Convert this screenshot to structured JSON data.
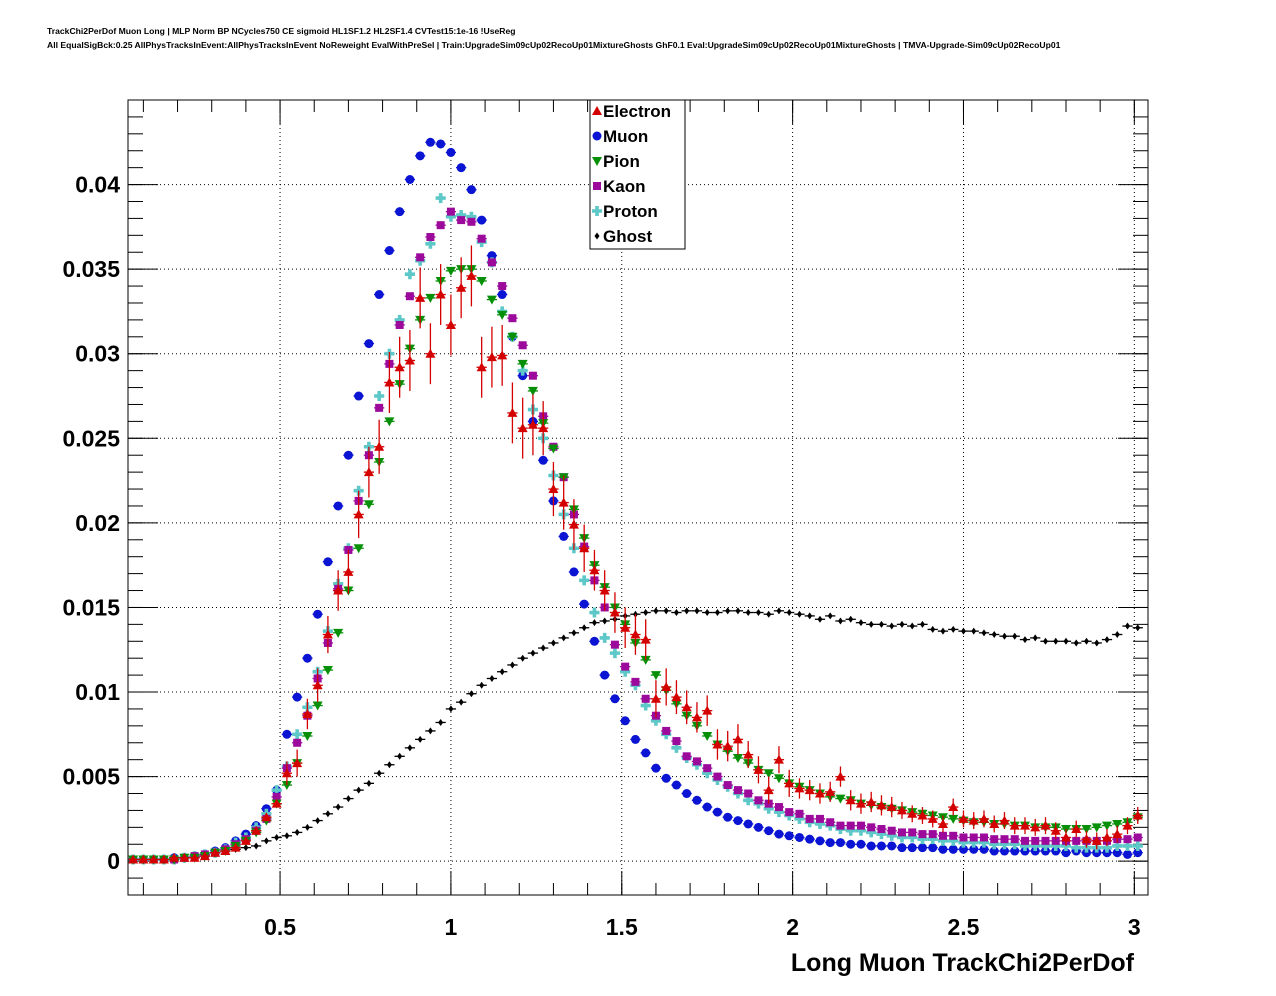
{
  "header": {
    "line1": "TrackChi2PerDof Muon Long | MLP Norm BP NCycles750 CE sigmoid HL1SF1.2 HL2SF1.4 CVTest15:1e-16 !UseReg",
    "line2": "All EqualSigBck:0.25 AllPhysTracksInEvent:AllPhysTracksInEvent NoReweight EvalWithPreSel | Train:UpgradeSim09cUp02RecoUp01MixtureGhosts GhF0.1 Eval:UpgradeSim09cUp02RecoUp01MixtureGhosts | TMVA-Upgrade-Sim09cUp02RecoUp01"
  },
  "chart_data": {
    "type": "scatter",
    "title": "",
    "xlabel": "Long Muon TrackChi2PerDof",
    "ylabel": "",
    "xlim": [
      0.055,
      3.04
    ],
    "ylim": [
      -0.002,
      0.045
    ],
    "grid": true,
    "legend_position": "top-center",
    "xticks": [
      {
        "value": 0.5,
        "label": "0.5"
      },
      {
        "value": 1,
        "label": "1"
      },
      {
        "value": 1.5,
        "label": "1.5"
      },
      {
        "value": 2,
        "label": "2"
      },
      {
        "value": 2.5,
        "label": "2.5"
      },
      {
        "value": 3,
        "label": "3"
      }
    ],
    "yticks": [
      {
        "value": 0,
        "label": "0"
      },
      {
        "value": 0.005,
        "label": "0.005"
      },
      {
        "value": 0.01,
        "label": "0.01"
      },
      {
        "value": 0.015,
        "label": "0.015"
      },
      {
        "value": 0.02,
        "label": "0.02"
      },
      {
        "value": 0.025,
        "label": "0.025"
      },
      {
        "value": 0.03,
        "label": "0.03"
      },
      {
        "value": 0.035,
        "label": "0.035"
      },
      {
        "value": 0.04,
        "label": "0.04"
      }
    ],
    "x_start": 0.07,
    "bin_width": 0.03,
    "series": [
      {
        "name": "Electron",
        "marker": "triangle-up",
        "color": "#d40000",
        "values": [
          0.0001,
          0.0001,
          0.0001,
          0.0001,
          0.0002,
          0.0002,
          0.0002,
          0.0003,
          0.0005,
          0.0006,
          0.0008,
          0.0012,
          0.0018,
          0.0026,
          0.0034,
          0.0052,
          0.0058,
          0.0087,
          0.0104,
          0.0134,
          0.016,
          0.0171,
          0.0205,
          0.023,
          0.0245,
          0.0283,
          0.0292,
          0.0296,
          0.0333,
          0.03,
          0.0335,
          0.0317,
          0.0339,
          0.0346,
          0.0292,
          0.0298,
          0.0299,
          0.0265,
          0.0256,
          0.0258,
          0.0256,
          0.022,
          0.0212,
          0.0199,
          0.0185,
          0.0172,
          0.016,
          0.0147,
          0.0138,
          0.0134,
          0.0131,
          0.0096,
          0.0103,
          0.0097,
          0.0091,
          0.0085,
          0.0089,
          0.0069,
          0.0068,
          0.0072,
          0.0063,
          0.0054,
          0.0042,
          0.006,
          0.0046,
          0.0043,
          0.0042,
          0.004,
          0.0041,
          0.005,
          0.0036,
          0.0034,
          0.0035,
          0.0033,
          0.0032,
          0.003,
          0.0028,
          0.0027,
          0.0025,
          0.0022,
          0.0032,
          0.0025,
          0.0024,
          0.0025,
          0.0022,
          0.0024,
          0.0021,
          0.0021,
          0.002,
          0.0021,
          0.0018,
          0.0014,
          0.0019,
          0.0013,
          0.0012,
          0.0014,
          0.0016,
          0.0021,
          0.0027
        ],
        "errors": [
          0.0001,
          0.0001,
          0.0001,
          0.0001,
          0.0001,
          0.0001,
          0.0001,
          0.0001,
          0.0001,
          0.0001,
          0.0002,
          0.0002,
          0.0002,
          0.0002,
          0.0002,
          0.0007,
          0.0008,
          0.0009,
          0.001,
          0.0011,
          0.0012,
          0.0013,
          0.0014,
          0.0015,
          0.0016,
          0.0018,
          0.0018,
          0.0018,
          0.0018,
          0.0018,
          0.0018,
          0.0018,
          0.0018,
          0.0018,
          0.0018,
          0.0018,
          0.0018,
          0.0018,
          0.0018,
          0.0018,
          0.0016,
          0.0016,
          0.0016,
          0.0015,
          0.0014,
          0.0012,
          0.0012,
          0.0012,
          0.0012,
          0.0012,
          0.0012,
          0.0011,
          0.0011,
          0.001,
          0.001,
          0.0009,
          0.0009,
          0.0009,
          0.0009,
          0.0009,
          0.0008,
          0.0008,
          0.0008,
          0.0008,
          0.0008,
          0.0006,
          0.0006,
          0.0006,
          0.0006,
          0.0006,
          0.0006,
          0.0006,
          0.0006,
          0.0006,
          0.0006,
          0.0005,
          0.0005,
          0.0005,
          0.0005,
          0.0005,
          0.0005,
          0.0005,
          0.0005,
          0.0005,
          0.0005,
          0.0005,
          0.0005,
          0.0005,
          0.0005,
          0.0005,
          0.0005,
          0.0005,
          0.0005,
          0.0005,
          0.0005,
          0.0005,
          0.0005,
          0.0005,
          0.0005
        ]
      },
      {
        "name": "Muon",
        "marker": "circle",
        "color": "#0a14d2",
        "values": [
          0.0001,
          0.0001,
          0.0001,
          0.0001,
          0.0002,
          0.0002,
          0.0003,
          0.0004,
          0.0006,
          0.0008,
          0.0012,
          0.0016,
          0.0021,
          0.0031,
          0.0042,
          0.0075,
          0.0097,
          0.012,
          0.0146,
          0.0177,
          0.021,
          0.024,
          0.0275,
          0.0306,
          0.0335,
          0.0361,
          0.0384,
          0.0403,
          0.0417,
          0.0425,
          0.0424,
          0.0419,
          0.041,
          0.0397,
          0.0379,
          0.0358,
          0.0335,
          0.031,
          0.0287,
          0.026,
          0.0237,
          0.0213,
          0.0192,
          0.0171,
          0.0152,
          0.013,
          0.011,
          0.0096,
          0.0083,
          0.0072,
          0.0064,
          0.0055,
          0.0049,
          0.0045,
          0.004,
          0.0036,
          0.0032,
          0.0029,
          0.0026,
          0.0024,
          0.0022,
          0.002,
          0.0018,
          0.0016,
          0.0015,
          0.0014,
          0.0013,
          0.0012,
          0.0011,
          0.0011,
          0.001,
          0.001,
          0.0009,
          0.0009,
          0.0009,
          0.0008,
          0.0008,
          0.0008,
          0.0008,
          0.0007,
          0.0007,
          0.0007,
          0.0007,
          0.0007,
          0.0006,
          0.0006,
          0.0006,
          0.0006,
          0.0006,
          0.0006,
          0.0006,
          0.0005,
          0.0006,
          0.0005,
          0.0005,
          0.0005,
          0.0005,
          0.0004,
          0.0005
        ]
      },
      {
        "name": "Pion",
        "marker": "triangle-down",
        "color": "#079007",
        "values": [
          0.0001,
          0.0001,
          0.0001,
          0.0001,
          0.0001,
          0.0002,
          0.0002,
          0.0003,
          0.0005,
          0.0006,
          0.0009,
          0.0012,
          0.0017,
          0.0024,
          0.0034,
          0.0045,
          0.0058,
          0.0074,
          0.0092,
          0.0113,
          0.0135,
          0.016,
          0.0185,
          0.0211,
          0.0236,
          0.026,
          0.0282,
          0.0303,
          0.032,
          0.0333,
          0.0343,
          0.0349,
          0.035,
          0.035,
          0.0343,
          0.0332,
          0.0323,
          0.031,
          0.0294,
          0.0278,
          0.0259,
          0.0244,
          0.0227,
          0.0208,
          0.0191,
          0.0175,
          0.0162,
          0.015,
          0.014,
          0.0129,
          0.0119,
          0.011,
          0.0101,
          0.0093,
          0.0086,
          0.008,
          0.0074,
          0.0069,
          0.0065,
          0.0061,
          0.0058,
          0.0054,
          0.0052,
          0.0049,
          0.0046,
          0.0044,
          0.0042,
          0.004,
          0.0038,
          0.0037,
          0.0036,
          0.0034,
          0.0033,
          0.0032,
          0.0031,
          0.003,
          0.0029,
          0.0028,
          0.0027,
          0.0026,
          0.0025,
          0.0024,
          0.0023,
          0.0023,
          0.0022,
          0.0022,
          0.0021,
          0.0021,
          0.002,
          0.002,
          0.002,
          0.0019,
          0.0019,
          0.0019,
          0.002,
          0.0021,
          0.0022,
          0.0023,
          0.0026
        ]
      },
      {
        "name": "Kaon",
        "marker": "square",
        "color": "#9c0a9c",
        "values": [
          0.0001,
          0.0001,
          0.0001,
          0.0001,
          0.0001,
          0.0002,
          0.0003,
          0.0004,
          0.0005,
          0.0007,
          0.001,
          0.0013,
          0.0018,
          0.0025,
          0.0038,
          0.0055,
          0.007,
          0.0086,
          0.0108,
          0.0129,
          0.0161,
          0.0184,
          0.0213,
          0.024,
          0.0268,
          0.0294,
          0.0317,
          0.0334,
          0.0357,
          0.0369,
          0.0376,
          0.0384,
          0.0379,
          0.0378,
          0.0368,
          0.0354,
          0.034,
          0.0321,
          0.0305,
          0.0287,
          0.0263,
          0.0245,
          0.0227,
          0.0205,
          0.0186,
          0.0166,
          0.015,
          0.0128,
          0.0115,
          0.0106,
          0.0096,
          0.0086,
          0.0077,
          0.0071,
          0.0062,
          0.0059,
          0.0055,
          0.005,
          0.0045,
          0.0042,
          0.004,
          0.0036,
          0.0034,
          0.0032,
          0.0029,
          0.0028,
          0.0025,
          0.0025,
          0.0023,
          0.0021,
          0.0021,
          0.0021,
          0.002,
          0.0019,
          0.0018,
          0.0017,
          0.0017,
          0.0016,
          0.0016,
          0.0015,
          0.0015,
          0.0014,
          0.0014,
          0.0014,
          0.0013,
          0.0013,
          0.0013,
          0.0012,
          0.0012,
          0.0012,
          0.0012,
          0.0012,
          0.0012,
          0.0012,
          0.0012,
          0.0012,
          0.0013,
          0.0013,
          0.0014
        ]
      },
      {
        "name": "Proton",
        "marker": "cross",
        "color": "#5ec8c8",
        "values": [
          0.0001,
          0.0001,
          0.0001,
          0.0001,
          0.0001,
          0.0002,
          0.0003,
          0.0004,
          0.0005,
          0.0007,
          0.0011,
          0.0014,
          0.002,
          0.0028,
          0.0042,
          0.0056,
          0.0075,
          0.0091,
          0.0112,
          0.0136,
          0.0164,
          0.0185,
          0.0219,
          0.0245,
          0.0275,
          0.03,
          0.032,
          0.0347,
          0.0355,
          0.0365,
          0.0392,
          0.0381,
          0.0382,
          0.0381,
          0.0366,
          0.0354,
          0.0325,
          0.031,
          0.029,
          0.0267,
          0.025,
          0.0228,
          0.0205,
          0.0185,
          0.0166,
          0.0147,
          0.0132,
          0.0123,
          0.0112,
          0.0104,
          0.0092,
          0.0083,
          0.0075,
          0.0067,
          0.0061,
          0.0057,
          0.0052,
          0.0048,
          0.0044,
          0.004,
          0.0036,
          0.0034,
          0.0031,
          0.0029,
          0.0027,
          0.0025,
          0.0023,
          0.0022,
          0.0021,
          0.0019,
          0.0018,
          0.0018,
          0.0017,
          0.0016,
          0.0015,
          0.0014,
          0.0014,
          0.0013,
          0.0013,
          0.0012,
          0.0012,
          0.0011,
          0.0011,
          0.0011,
          0.001,
          0.001,
          0.001,
          0.0009,
          0.0009,
          0.0009,
          0.0009,
          0.0009,
          0.0008,
          0.0008,
          0.0008,
          0.0008,
          0.0009,
          0.0009,
          0.0009
        ]
      },
      {
        "name": "Ghost",
        "marker": "diamond",
        "color": "#000000",
        "values": [
          0.0001,
          0.0001,
          0.0001,
          0.0001,
          0.0002,
          0.0002,
          0.0003,
          0.0004,
          0.0005,
          0.0006,
          0.0007,
          0.0008,
          0.0009,
          0.0012,
          0.0014,
          0.0015,
          0.0017,
          0.002,
          0.0024,
          0.0028,
          0.0032,
          0.0037,
          0.0042,
          0.0046,
          0.0052,
          0.0057,
          0.0062,
          0.0067,
          0.0072,
          0.0077,
          0.0082,
          0.009,
          0.0094,
          0.0099,
          0.0104,
          0.0108,
          0.0112,
          0.0116,
          0.012,
          0.0123,
          0.0126,
          0.0129,
          0.0132,
          0.0135,
          0.0138,
          0.0141,
          0.0142,
          0.0143,
          0.0145,
          0.0146,
          0.0147,
          0.0148,
          0.0148,
          0.0147,
          0.0148,
          0.0148,
          0.0147,
          0.0147,
          0.0148,
          0.0148,
          0.0147,
          0.0147,
          0.0146,
          0.0148,
          0.0147,
          0.0146,
          0.0145,
          0.0143,
          0.0145,
          0.0142,
          0.0143,
          0.0141,
          0.014,
          0.014,
          0.0139,
          0.014,
          0.0139,
          0.014,
          0.0137,
          0.0136,
          0.0137,
          0.0136,
          0.0136,
          0.0135,
          0.0134,
          0.0133,
          0.0133,
          0.0131,
          0.0132,
          0.013,
          0.013,
          0.013,
          0.0129,
          0.013,
          0.0129,
          0.0131,
          0.0134,
          0.0139,
          0.0138
        ]
      }
    ]
  }
}
